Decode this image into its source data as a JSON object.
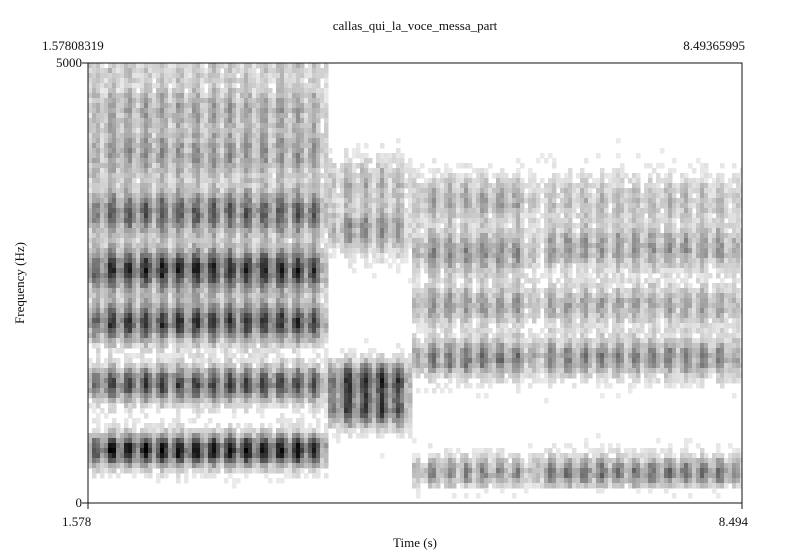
{
  "chart_data": {
    "type": "heatmap",
    "title": "callas_qui_la_voce_messa_part",
    "xlabel": "Time (s)",
    "ylabel": "Frequency (Hz)",
    "x_range": [
      1.578,
      8.494
    ],
    "y_range": [
      0,
      5000
    ],
    "top_labels": {
      "left": "1.57808319",
      "right": "8.49365995"
    },
    "x_tick_labels": [
      "1.578",
      "8.494"
    ],
    "y_tick_labels": [
      "0",
      "5000"
    ],
    "colormap": "grayscale (white = low energy, black = high energy)",
    "segments": [
      {
        "t_start": 1.578,
        "t_end": 4.12,
        "formants_hz": [
          600,
          1350,
          2050,
          2650,
          3300,
          3950,
          4500
        ],
        "strength": [
          1.0,
          0.8,
          0.85,
          0.9,
          0.7,
          0.45,
          0.4
        ]
      },
      {
        "t_start": 4.12,
        "t_end": 5.0,
        "formants_hz": [
          1400,
          1050,
          3100,
          3650
        ],
        "strength": [
          0.85,
          0.75,
          0.5,
          0.35
        ]
      },
      {
        "t_start": 5.0,
        "t_end": 6.3,
        "formants_hz": [
          350,
          1650,
          2250,
          2850,
          3450
        ],
        "strength": [
          0.5,
          0.6,
          0.45,
          0.5,
          0.4
        ]
      },
      {
        "t_start": 6.3,
        "t_end": 8.494,
        "formants_hz": [
          350,
          1650,
          2250,
          2900,
          3450
        ],
        "strength": [
          0.6,
          0.55,
          0.4,
          0.45,
          0.3
        ]
      }
    ]
  }
}
